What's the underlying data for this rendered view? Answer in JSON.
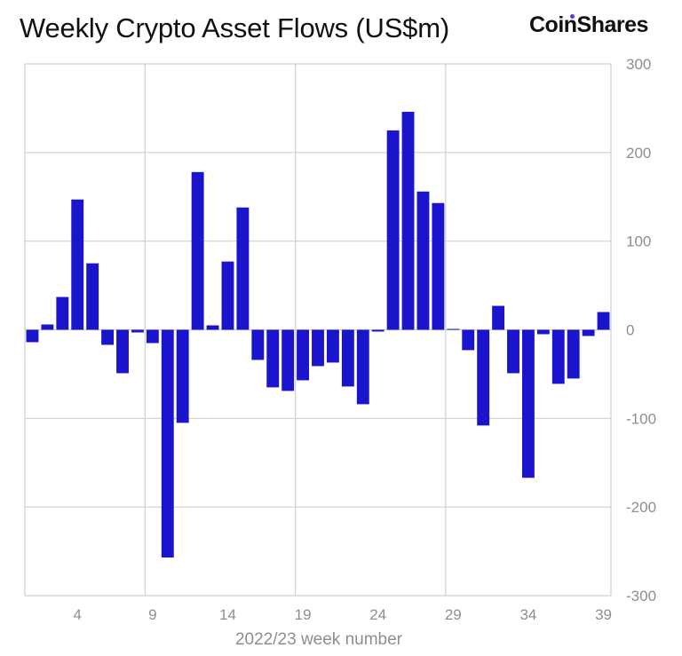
{
  "header": {
    "title": "Weekly Crypto Asset Flows (US$m)",
    "brand": "CoinShares"
  },
  "colors": {
    "bar": "#1a14cc",
    "grid": "#cfcfcf",
    "tick_text": "#8e8e8e",
    "accent_dot": "#4a3fe0"
  },
  "chart_data": {
    "type": "bar",
    "title": "Weekly Crypto Asset Flows (US$m)",
    "xlabel": "2022/23 week number",
    "ylabel": "US$m",
    "y_axis_side": "right",
    "ylim": [
      -300,
      300
    ],
    "y_ticks": [
      300,
      200,
      100,
      0,
      -100,
      -200,
      -300
    ],
    "x_ticks": [
      4,
      9,
      14,
      19,
      24,
      29,
      34,
      39
    ],
    "grid": true,
    "categories": [
      1,
      2,
      3,
      4,
      5,
      6,
      7,
      8,
      9,
      10,
      11,
      12,
      13,
      14,
      15,
      16,
      17,
      18,
      19,
      20,
      21,
      22,
      23,
      24,
      25,
      26,
      27,
      28,
      29,
      30,
      31,
      32,
      33,
      34,
      35,
      36,
      37,
      38,
      39
    ],
    "values": [
      -14,
      6,
      37,
      147,
      75,
      -17,
      -49,
      -3,
      -15,
      -257,
      -105,
      178,
      5,
      77,
      138,
      -34,
      -65,
      -69,
      -57,
      -41,
      -37,
      -64,
      -84,
      -2,
      225,
      246,
      156,
      143,
      1,
      -23,
      -108,
      27,
      -49,
      -167,
      -5,
      -61,
      -55,
      -7,
      20
    ]
  }
}
